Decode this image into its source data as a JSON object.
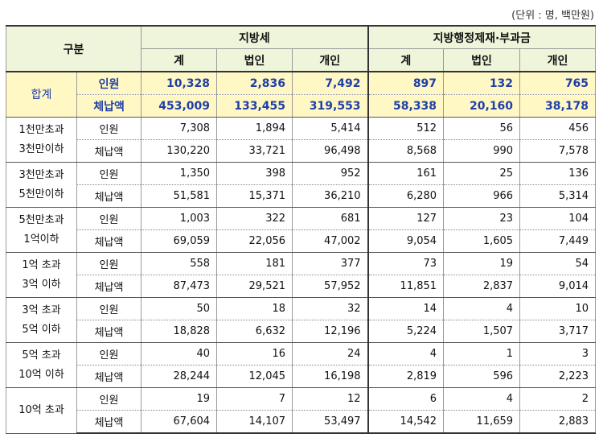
{
  "unit_note": "(단위 : 명, 백만원)",
  "headers": {
    "gubun": "구분",
    "group_local_tax": "지방세",
    "group_admin": "지방행정제재·부과금",
    "sub": [
      "계",
      "법인",
      "개인",
      "계",
      "법인",
      "개인"
    ]
  },
  "groups": [
    {
      "label": [
        "합계"
      ],
      "is_total": true,
      "rows": [
        {
          "metric": "인원",
          "values": [
            "10,328",
            "2,836",
            "7,492",
            "897",
            "132",
            "765"
          ]
        },
        {
          "metric": "체납액",
          "values": [
            "453,009",
            "133,455",
            "319,553",
            "58,338",
            "20,160",
            "38,178"
          ]
        }
      ]
    },
    {
      "label": [
        "1천만초과",
        "3천만이하"
      ],
      "rows": [
        {
          "metric": "인원",
          "values": [
            "7,308",
            "1,894",
            "5,414",
            "512",
            "56",
            "456"
          ]
        },
        {
          "metric": "체납액",
          "values": [
            "130,220",
            "33,721",
            "96,498",
            "8,568",
            "990",
            "7,578"
          ]
        }
      ]
    },
    {
      "label": [
        "3천만초과",
        "5천만이하"
      ],
      "rows": [
        {
          "metric": "인원",
          "values": [
            "1,350",
            "398",
            "952",
            "161",
            "25",
            "136"
          ]
        },
        {
          "metric": "체납액",
          "values": [
            "51,581",
            "15,371",
            "36,210",
            "6,280",
            "966",
            "5,314"
          ]
        }
      ]
    },
    {
      "label": [
        "5천만초과",
        "1억이하"
      ],
      "rows": [
        {
          "metric": "인원",
          "values": [
            "1,003",
            "322",
            "681",
            "127",
            "23",
            "104"
          ]
        },
        {
          "metric": "체납액",
          "values": [
            "69,059",
            "22,056",
            "47,002",
            "9,054",
            "1,605",
            "7,449"
          ]
        }
      ]
    },
    {
      "label": [
        "1억 초과",
        "3억 이하"
      ],
      "rows": [
        {
          "metric": "인원",
          "values": [
            "558",
            "181",
            "377",
            "73",
            "19",
            "54"
          ]
        },
        {
          "metric": "체납액",
          "values": [
            "87,473",
            "29,521",
            "57,952",
            "11,851",
            "2,837",
            "9,014"
          ]
        }
      ]
    },
    {
      "label": [
        "3억 초과",
        "5억 이하"
      ],
      "rows": [
        {
          "metric": "인원",
          "values": [
            "50",
            "18",
            "32",
            "14",
            "4",
            "10"
          ]
        },
        {
          "metric": "체납액",
          "values": [
            "18,828",
            "6,632",
            "12,196",
            "5,224",
            "1,507",
            "3,717"
          ]
        }
      ]
    },
    {
      "label": [
        "5억 초과",
        "10억 이하"
      ],
      "rows": [
        {
          "metric": "인원",
          "values": [
            "40",
            "16",
            "24",
            "4",
            "1",
            "3"
          ]
        },
        {
          "metric": "체납액",
          "values": [
            "28,244",
            "12,045",
            "16,198",
            "2,819",
            "596",
            "2,223"
          ]
        }
      ]
    },
    {
      "label": [
        "10억 초과"
      ],
      "rows": [
        {
          "metric": "인원",
          "values": [
            "19",
            "7",
            "12",
            "6",
            "4",
            "2"
          ]
        },
        {
          "metric": "체납액",
          "values": [
            "67,604",
            "14,107",
            "53,497",
            "14,542",
            "11,659",
            "2,883"
          ]
        }
      ]
    }
  ]
}
